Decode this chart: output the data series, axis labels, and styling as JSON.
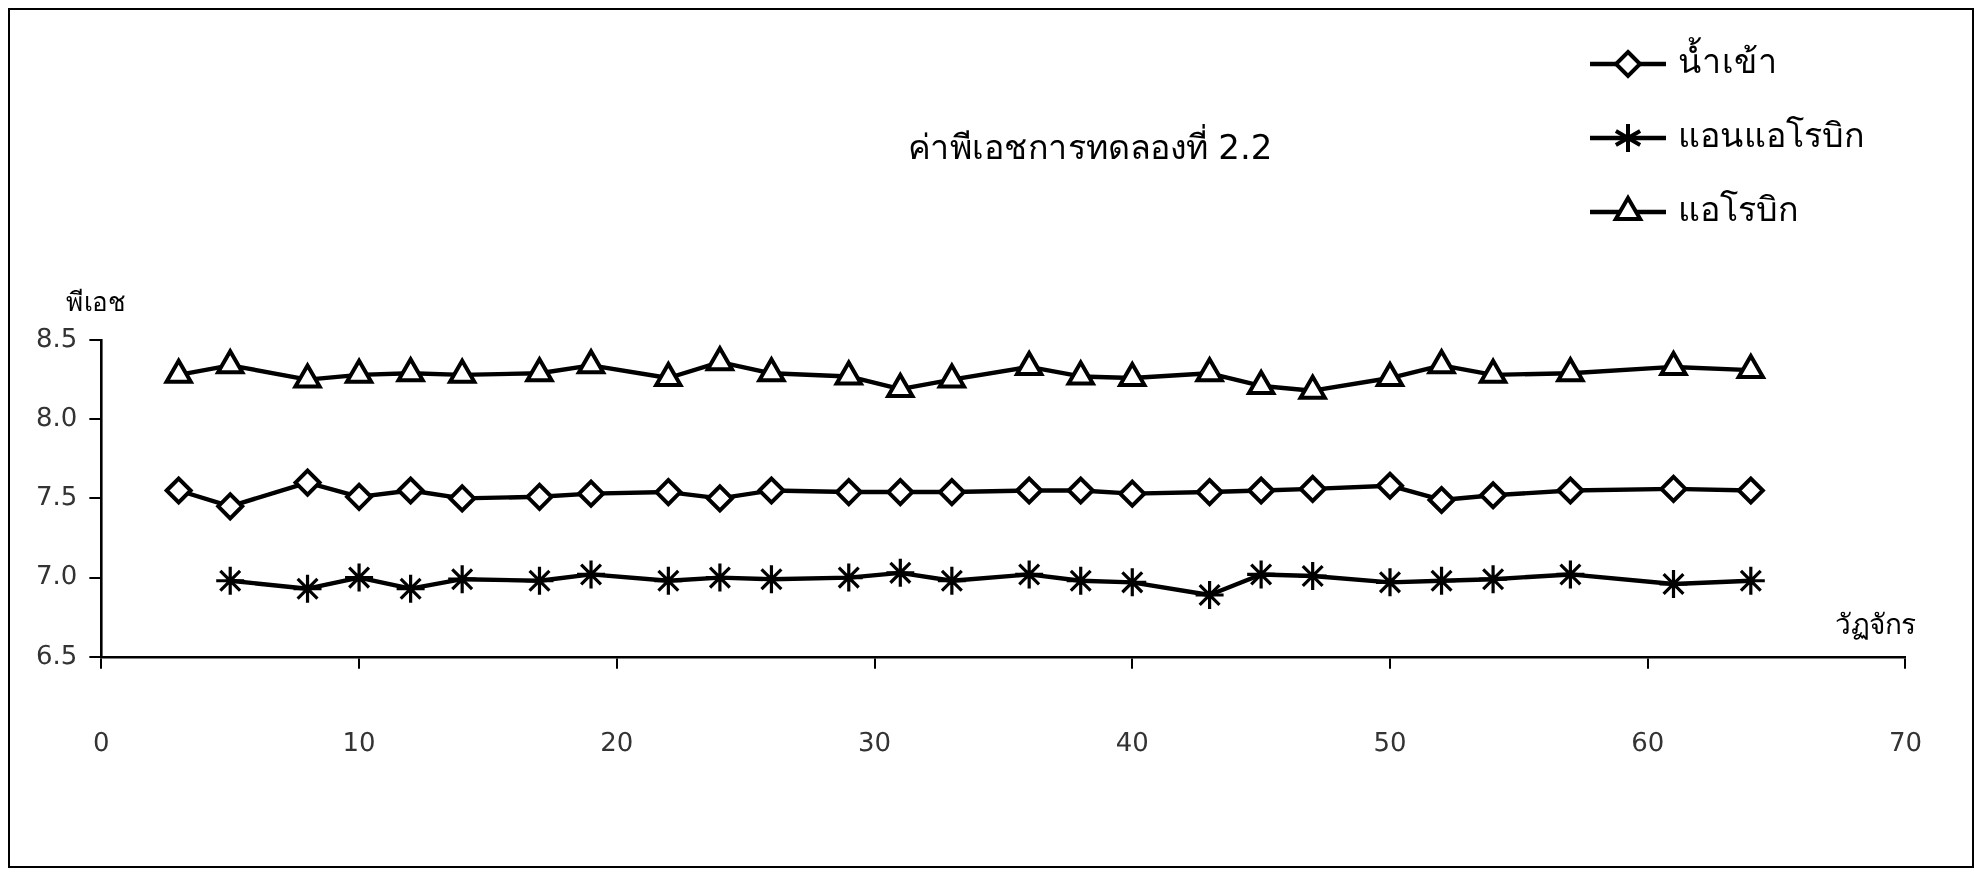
{
  "chart_data": {
    "type": "line",
    "title": "ค่าพีเอชการทดลองที่ 2.2",
    "xlabel": "วัฏจักร",
    "ylabel": "พีเอช",
    "xlim": [
      0,
      70
    ],
    "xticks": [
      0,
      10,
      20,
      30,
      40,
      50,
      60,
      70
    ],
    "ylim": [
      6.5,
      8.5
    ],
    "yticks": [
      {
        "value": 6.5,
        "label": "6.5"
      },
      {
        "value": 7,
        "label": "7.0"
      },
      {
        "value": 7.5,
        "label": "7.5"
      },
      {
        "value": 8,
        "label": "8.0"
      },
      {
        "value": 8.5,
        "label": "8.5"
      }
    ],
    "grid": false,
    "legend": "top right",
    "line_style": "solid",
    "series": [
      {
        "name": "น้ำเข้า",
        "color": "#000000",
        "marker": "diamond",
        "x": [
          3,
          5,
          8,
          10,
          12,
          14,
          17,
          19,
          22,
          24,
          26,
          29,
          31,
          33,
          36,
          38,
          40,
          43,
          45,
          47,
          50,
          52,
          54,
          57,
          61,
          64
        ],
        "values": [
          7.55,
          7.45,
          7.6,
          7.51,
          7.55,
          7.5,
          7.51,
          7.53,
          7.54,
          7.5,
          7.55,
          7.54,
          7.54,
          7.54,
          7.55,
          7.55,
          7.53,
          7.54,
          7.55,
          7.56,
          7.58,
          7.49,
          7.52,
          7.55,
          7.56,
          7.55
        ]
      },
      {
        "name": "แอนแอโรบิก",
        "color": "#000000",
        "marker": "cross",
        "x": [
          5,
          8,
          10,
          12,
          14,
          17,
          19,
          22,
          24,
          26,
          29,
          31,
          33,
          36,
          38,
          40,
          43,
          45,
          47,
          50,
          52,
          54,
          57,
          61,
          64
        ],
        "values": [
          6.98,
          6.93,
          7.0,
          6.93,
          6.99,
          6.98,
          7.02,
          6.98,
          7.0,
          6.99,
          7.0,
          7.03,
          6.98,
          7.02,
          6.98,
          6.97,
          6.89,
          7.02,
          7.01,
          6.97,
          6.98,
          6.99,
          7.02,
          6.96,
          6.98
        ]
      },
      {
        "name": "แอโรบิก",
        "color": "#000000",
        "marker": "triangle",
        "x": [
          3,
          5,
          8,
          10,
          12,
          14,
          17,
          19,
          22,
          24,
          26,
          29,
          31,
          33,
          36,
          38,
          40,
          43,
          45,
          47,
          50,
          52,
          54,
          57,
          61,
          64
        ],
        "values": [
          8.28,
          8.34,
          8.25,
          8.28,
          8.29,
          8.28,
          8.29,
          8.34,
          8.26,
          8.36,
          8.29,
          8.27,
          8.19,
          8.25,
          8.33,
          8.27,
          8.26,
          8.29,
          8.21,
          8.18,
          8.26,
          8.34,
          8.28,
          8.29,
          8.33,
          8.31
        ]
      }
    ]
  }
}
